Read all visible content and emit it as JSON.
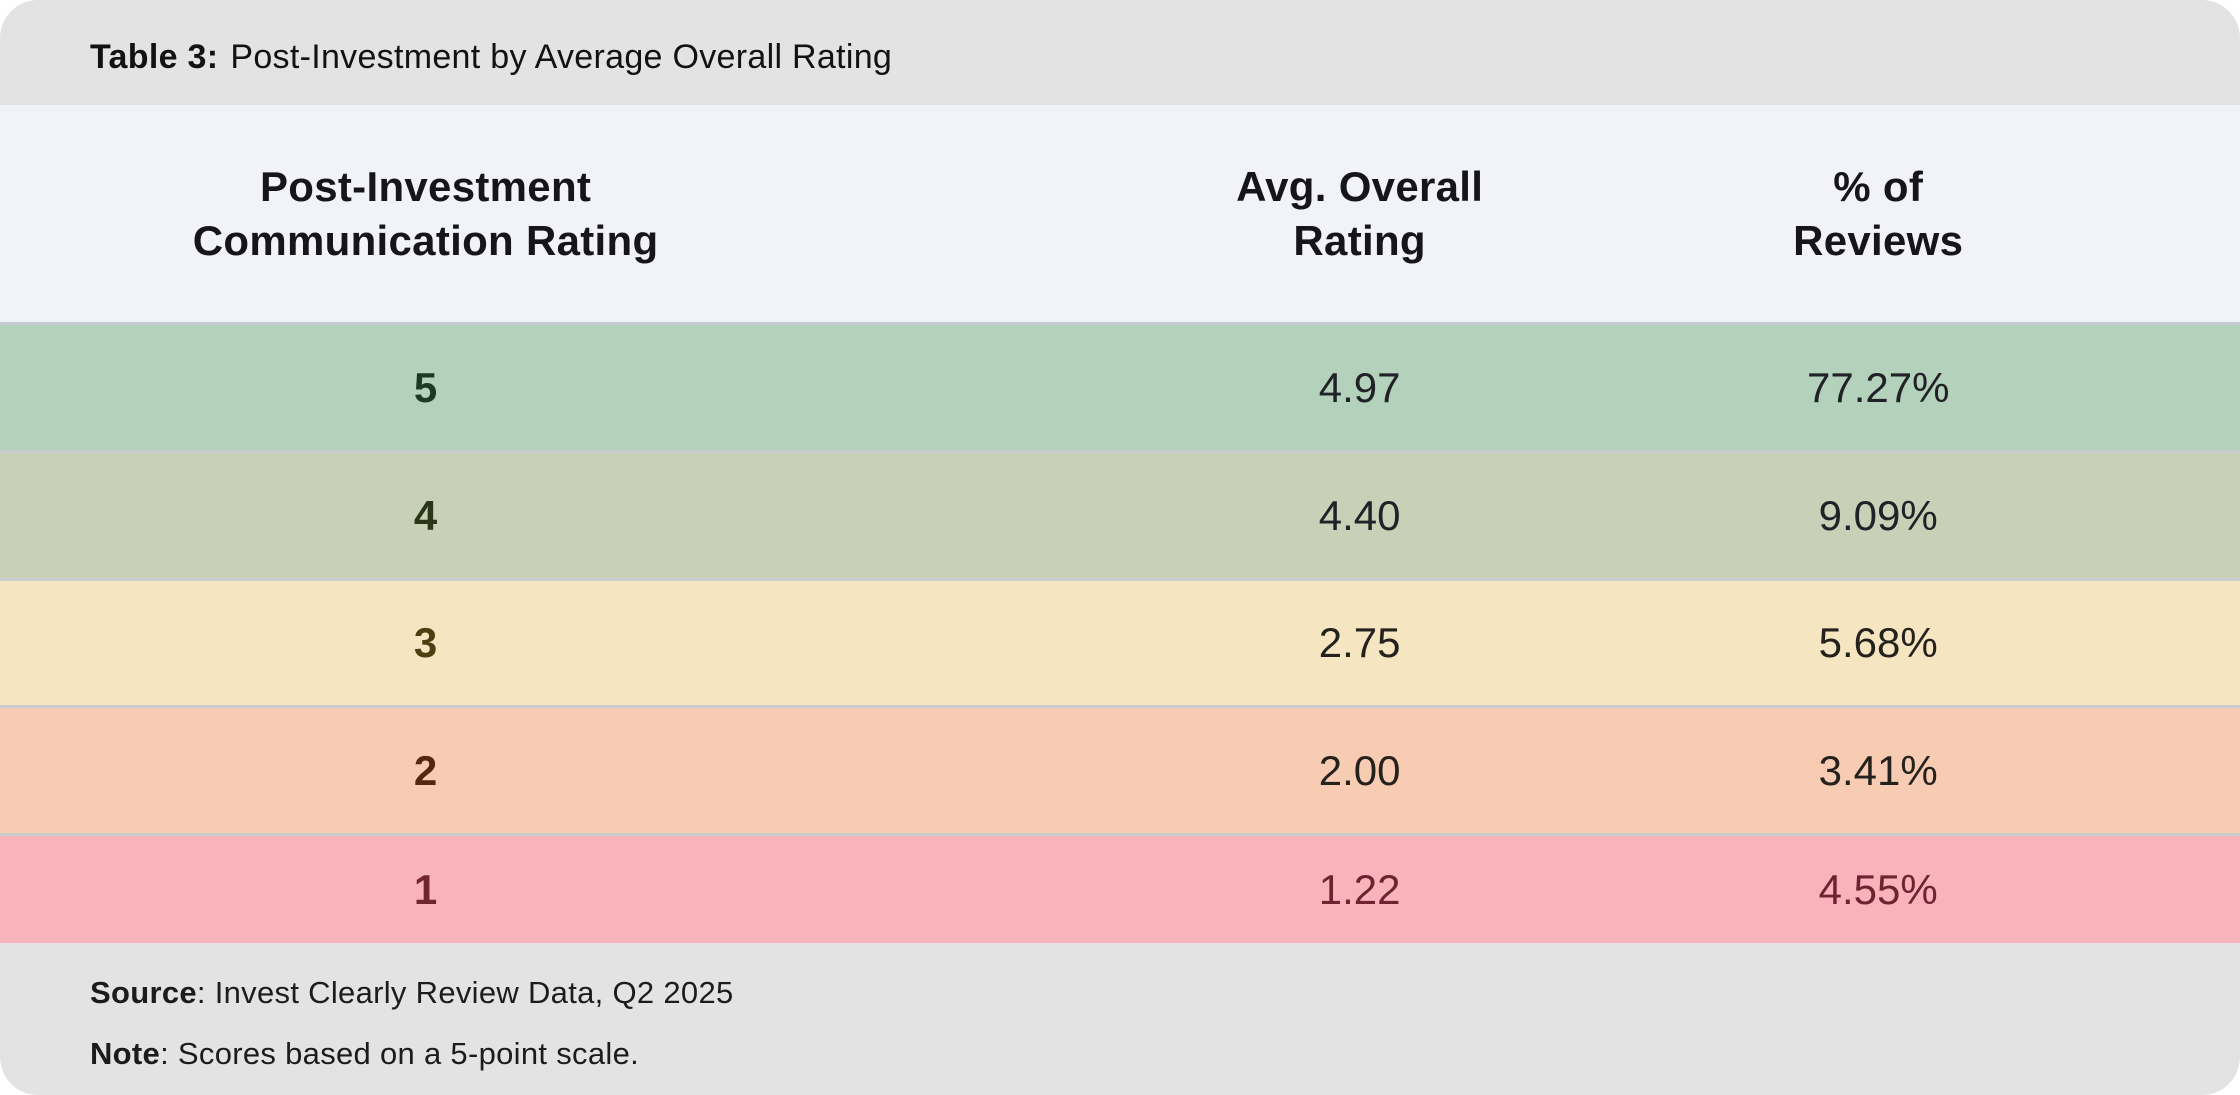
{
  "title": {
    "label": "Table 3:",
    "text": "Post-Investment by Average Overall Rating"
  },
  "table": {
    "columns": [
      {
        "label": "Post-Investment Communication Rating",
        "line1": "Post-Investment",
        "line2": "Communication Rating"
      },
      {
        "label": "Avg. Overall Rating",
        "line1": "Avg. Overall",
        "line2": "Rating"
      },
      {
        "label": "% of Reviews",
        "line1": "% of",
        "line2": "Reviews"
      }
    ],
    "rows": [
      {
        "rating": "5",
        "avg_overall": "4.97",
        "pct_reviews": "77.27%",
        "bg": "#b4d2bb",
        "rating_color": "#1d3a25",
        "value_color": "#202227"
      },
      {
        "rating": "4",
        "avg_overall": "4.40",
        "pct_reviews": "9.09%",
        "bg": "#c8d1b7",
        "rating_color": "#2b3517",
        "value_color": "#202227"
      },
      {
        "rating": "3",
        "avg_overall": "2.75",
        "pct_reviews": "5.68%",
        "bg": "#f6e5c1",
        "rating_color": "#4e3e10",
        "value_color": "#25221e"
      },
      {
        "rating": "2",
        "avg_overall": "2.00",
        "pct_reviews": "3.41%",
        "bg": "#f8ccb3",
        "rating_color": "#53280f",
        "value_color": "#25221e"
      },
      {
        "rating": "1",
        "avg_overall": "1.22",
        "pct_reviews": "4.55%",
        "bg": "#f8b3bb",
        "rating_color": "#712531",
        "value_color": "#6f2330"
      }
    ]
  },
  "footer": {
    "source_label": "Source",
    "source_text": ": Invest Clearly Review Data, Q2 2025",
    "note_label": "Note",
    "note_text": ": Scores based on a 5-point scale."
  },
  "colors": {
    "band_gray": "#e3e3e3",
    "header_bg": "#f2f3f8",
    "separator": "#c9cbce",
    "page_bg": "#ffffff",
    "row_green": "#b4d2bb",
    "row_sage": "#c8d1b7",
    "row_cream": "#f6e5c1",
    "row_peach": "#f8ccb3",
    "row_pink": "#f8b3bb"
  },
  "chart_data": {
    "type": "table",
    "title": "Table 3: Post-Investment by Average Overall Rating",
    "columns": [
      "Post-Investment Communication Rating",
      "Avg. Overall Rating",
      "% of Reviews"
    ],
    "rows": [
      [
        "5",
        "4.97",
        "77.27%"
      ],
      [
        "4",
        "4.40",
        "9.09%"
      ],
      [
        "3",
        "2.75",
        "5.68%"
      ],
      [
        "2",
        "2.00",
        "3.41%"
      ],
      [
        "1",
        "1.22",
        "4.55%"
      ]
    ],
    "source": "Invest Clearly Review Data, Q2 2025",
    "note": "Scores based on a 5-point scale.",
    "layout": {
      "row_color_scale": "green-to-red by rating",
      "header_position": "top"
    }
  }
}
